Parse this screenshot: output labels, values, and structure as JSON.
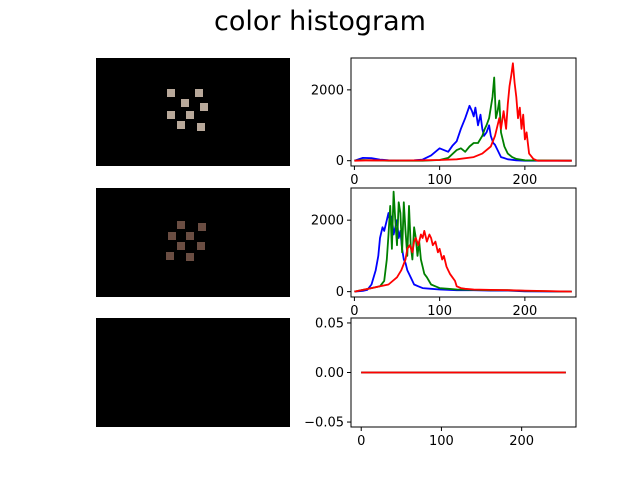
{
  "title": "color histogram",
  "chart_data": [
    {
      "type": "line",
      "xlim": [
        -4,
        260
      ],
      "ylim": [
        -150,
        2900
      ],
      "xticks": [
        "0",
        "100",
        "200"
      ],
      "yticks": [
        "0",
        "2000"
      ],
      "series": [
        {
          "color": "#0000ff",
          "x": [
            0,
            10,
            20,
            30,
            40,
            50,
            60,
            70,
            80,
            90,
            100,
            105,
            110,
            115,
            120,
            125,
            130,
            135,
            138,
            140,
            142,
            145,
            148,
            150,
            152,
            155,
            158,
            160,
            163,
            165,
            168,
            170,
            172,
            175,
            180,
            190,
            200,
            255
          ],
          "y": [
            0,
            80,
            70,
            30,
            10,
            5,
            5,
            10,
            30,
            150,
            350,
            300,
            250,
            420,
            550,
            900,
            1200,
            1550,
            1400,
            1250,
            1500,
            1000,
            1300,
            900,
            700,
            800,
            1000,
            700,
            500,
            450,
            300,
            200,
            100,
            80,
            40,
            10,
            0,
            0
          ]
        },
        {
          "color": "#008000",
          "x": [
            0,
            10,
            20,
            30,
            40,
            60,
            80,
            100,
            110,
            120,
            125,
            130,
            135,
            140,
            145,
            150,
            153,
            155,
            158,
            160,
            162,
            164,
            166,
            168,
            170,
            172,
            174,
            176,
            178,
            180,
            185,
            190,
            200,
            255
          ],
          "y": [
            0,
            20,
            10,
            5,
            0,
            0,
            0,
            20,
            80,
            300,
            350,
            250,
            400,
            500,
            500,
            700,
            900,
            1000,
            1200,
            1500,
            1800,
            2350,
            1200,
            1400,
            1700,
            800,
            600,
            400,
            300,
            200,
            100,
            50,
            10,
            0
          ]
        },
        {
          "color": "#ff0000",
          "x": [
            0,
            20,
            40,
            60,
            80,
            100,
            120,
            140,
            150,
            160,
            165,
            170,
            172,
            175,
            178,
            180,
            182,
            184,
            186,
            188,
            190,
            192,
            194,
            196,
            198,
            200,
            202,
            205,
            210,
            215,
            255
          ],
          "y": [
            0,
            10,
            5,
            5,
            10,
            20,
            40,
            100,
            200,
            400,
            700,
            1200,
            900,
            1400,
            900,
            1600,
            2100,
            2400,
            2750,
            2200,
            1800,
            1200,
            1500,
            900,
            1300,
            600,
            800,
            200,
            50,
            0,
            0
          ]
        }
      ]
    },
    {
      "type": "line",
      "xlim": [
        -4,
        260
      ],
      "ylim": [
        -150,
        2900
      ],
      "xticks": [
        "0",
        "100",
        "200"
      ],
      "yticks": [
        "0",
        "2000"
      ],
      "series": [
        {
          "color": "#0000ff",
          "x": [
            0,
            10,
            15,
            20,
            25,
            28,
            30,
            33,
            35,
            38,
            40,
            42,
            44,
            46,
            48,
            50,
            52,
            54,
            56,
            58,
            60,
            62,
            64,
            66,
            68,
            70,
            75,
            80,
            90,
            100,
            110,
            120,
            140,
            160,
            180,
            200,
            255
          ],
          "y": [
            0,
            20,
            50,
            200,
            600,
            1000,
            1500,
            1800,
            1700,
            2000,
            2200,
            1900,
            2100,
            1600,
            1800,
            2000,
            1500,
            1700,
            1200,
            900,
            800,
            600,
            500,
            400,
            300,
            200,
            150,
            100,
            80,
            60,
            50,
            40,
            40,
            30,
            30,
            10,
            0
          ]
        },
        {
          "color": "#008000",
          "x": [
            0,
            10,
            20,
            30,
            35,
            38,
            40,
            42,
            44,
            46,
            48,
            50,
            52,
            54,
            56,
            58,
            60,
            62,
            64,
            66,
            68,
            70,
            72,
            74,
            76,
            78,
            80,
            82,
            85,
            90,
            95,
            100,
            110,
            120,
            140,
            160,
            180,
            200,
            255
          ],
          "y": [
            0,
            50,
            100,
            150,
            300,
            900,
            1600,
            2400,
            1200,
            2800,
            2000,
            1300,
            2500,
            2200,
            1100,
            2500,
            1700,
            1000,
            2400,
            1300,
            900,
            1800,
            1500,
            1000,
            1400,
            900,
            700,
            500,
            400,
            200,
            150,
            100,
            80,
            60,
            50,
            40,
            40,
            20,
            0
          ]
        },
        {
          "color": "#ff0000",
          "x": [
            0,
            10,
            20,
            30,
            40,
            50,
            55,
            60,
            62,
            65,
            68,
            70,
            72,
            75,
            78,
            80,
            82,
            85,
            88,
            90,
            92,
            95,
            98,
            100,
            103,
            105,
            108,
            110,
            112,
            115,
            118,
            120,
            125,
            130,
            140,
            160,
            180,
            200,
            255
          ],
          "y": [
            0,
            50,
            100,
            150,
            200,
            400,
            600,
            900,
            1200,
            1300,
            1100,
            1400,
            1500,
            1300,
            1600,
            1500,
            1700,
            1400,
            1600,
            1500,
            1300,
            1400,
            1100,
            1200,
            900,
            1000,
            700,
            600,
            500,
            400,
            300,
            150,
            100,
            80,
            60,
            50,
            40,
            30,
            0
          ]
        }
      ]
    },
    {
      "type": "line",
      "xlim": [
        -12.75,
        267.75
      ],
      "ylim": [
        -0.055,
        0.055
      ],
      "xticks": [
        "0",
        "100",
        "200"
      ],
      "yticks": [
        "−0.05",
        "0.00",
        "0.05"
      ],
      "series": [
        {
          "color": "#0000ff",
          "x": [
            0,
            255
          ],
          "y": [
            0,
            0
          ]
        },
        {
          "color": "#008000",
          "x": [
            0,
            255
          ],
          "y": [
            0,
            0
          ]
        },
        {
          "color": "#ff0000",
          "x": [
            0,
            255
          ],
          "y": [
            0,
            0
          ]
        }
      ]
    }
  ]
}
